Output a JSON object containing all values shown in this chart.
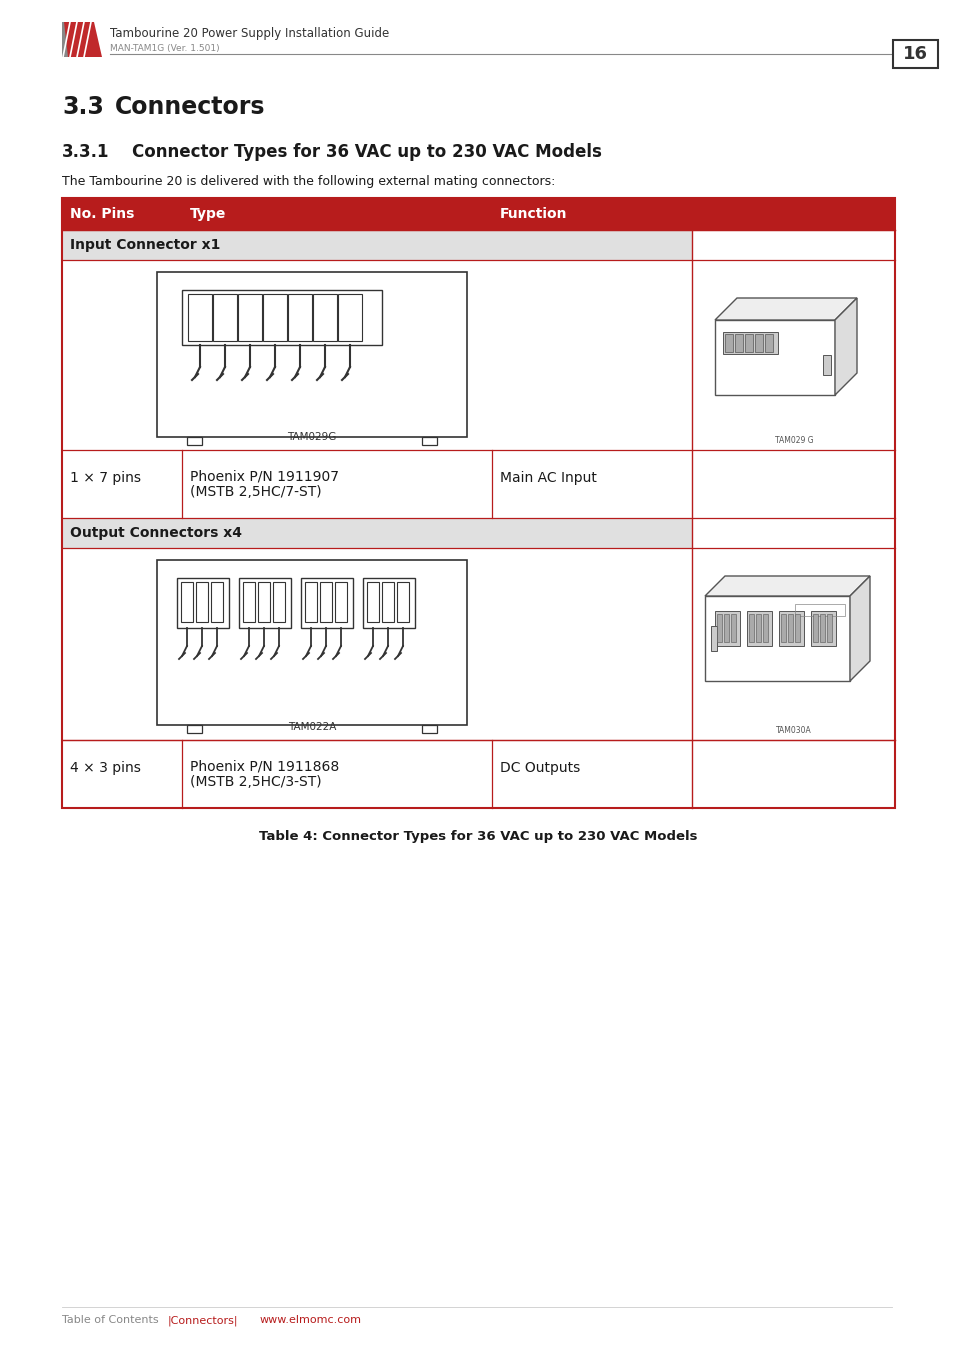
{
  "page_title": "Tambourine 20 Power Supply Installation Guide",
  "page_subtitle": "MAN-TAM1G (Ver. 1.501)",
  "page_number": "16",
  "section_num": "3.3",
  "section_name": "Connectors",
  "subsection_title": "3.3.1",
  "subsection_name": "Connector Types for 36 VAC up to 230 VAC Models",
  "intro_text": "The Tambourine 20 is delivered with the following external mating connectors:",
  "table_header": [
    "No. Pins",
    "Type",
    "Function"
  ],
  "header_bg": "#b71c1c",
  "header_fg": "#ffffff",
  "section_bg": "#e0e0e0",
  "row_bg": "#ffffff",
  "border_color": "#b71c1c",
  "input_section_label": "Input Connector x1",
  "input_img_caption": "TAM029G",
  "input_no_pins": "1 × 7 pins",
  "input_type_line1": "Phoenix P/N 1911907",
  "input_type_line2": "(MSTB 2,5HC/7-ST)",
  "input_function": "Main AC Input",
  "output_section_label": "Output Connectors x4",
  "output_img_caption": "TAM022A",
  "output_no_pins": "4 × 3 pins",
  "output_type_line1": "Phoenix P/N 1911868",
  "output_type_line2": "(MSTB 2,5HC/3-ST)",
  "output_function": "DC Outputs",
  "table_caption": "Table 4: Connector Types for 36 VAC up to 230 VAC Models",
  "footer_left": "Table of Contents",
  "footer_sep": "|Connectors|",
  "footer_link": "www.elmomc.com",
  "footer_link_color": "#b71c1c",
  "logo_red": "#c0292b",
  "logo_gray": "#888888",
  "text_dark": "#1a1a1a",
  "text_medium": "#444444",
  "text_light": "#888888",
  "background": "#ffffff"
}
